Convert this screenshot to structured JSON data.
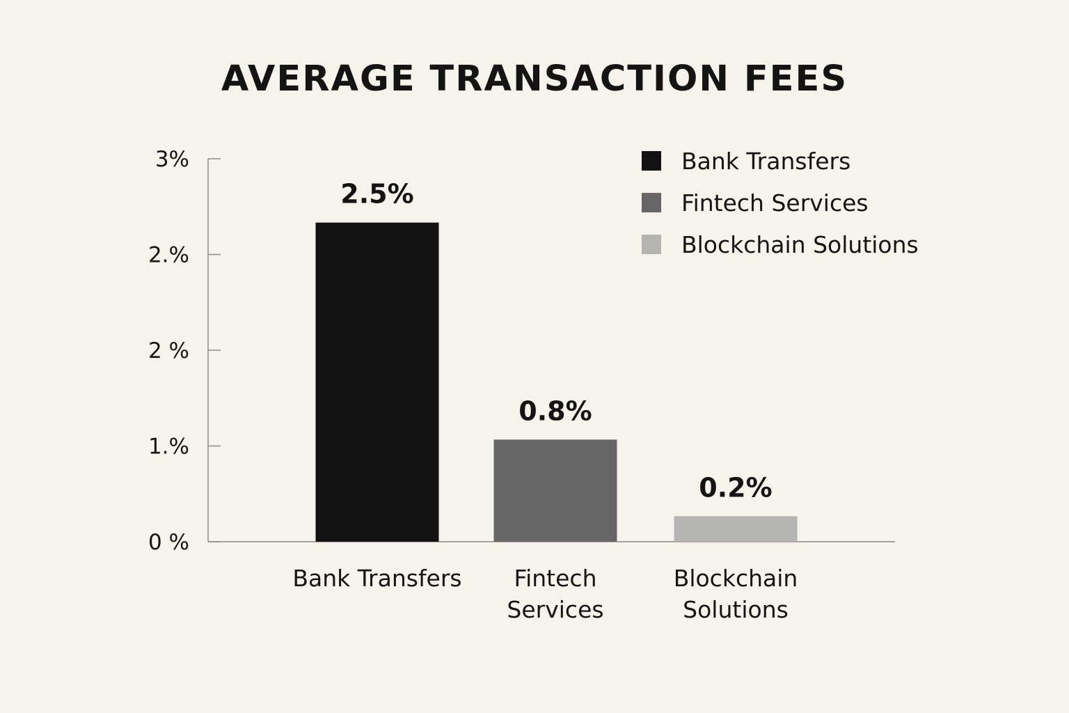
{
  "chart_data": {
    "type": "bar",
    "title": "AVERAGE TRANSACTION FEES",
    "xlabel": "",
    "ylabel": "",
    "categories": [
      "Bank Transfers",
      "Fintech Services",
      "Blockchain Solutions"
    ],
    "category_label_lines": [
      [
        "Bank Transfers"
      ],
      [
        "Fintech",
        "Services"
      ],
      [
        "Blockchain",
        "Solutions"
      ]
    ],
    "values": [
      2.5,
      0.8,
      0.2
    ],
    "value_labels": [
      "2.5%",
      "0.8%",
      "0.2%"
    ],
    "colors": [
      "#121212",
      "#666666",
      "#b4b4b2"
    ],
    "y_ticks": [
      0,
      0.75,
      1.5,
      2.25,
      3
    ],
    "y_tick_labels": [
      "0 %",
      "1.%",
      "2 %",
      "2.%",
      "3%"
    ],
    "ylim": [
      0,
      3
    ],
    "grid": false,
    "legend": {
      "placement": "top-right",
      "entries": [
        {
          "label": "Bank Transfers",
          "color": "#121212"
        },
        {
          "label": "Fintech Services",
          "color": "#666666"
        },
        {
          "label": "Blockchain Solutions",
          "color": "#b4b4b2"
        }
      ]
    }
  }
}
